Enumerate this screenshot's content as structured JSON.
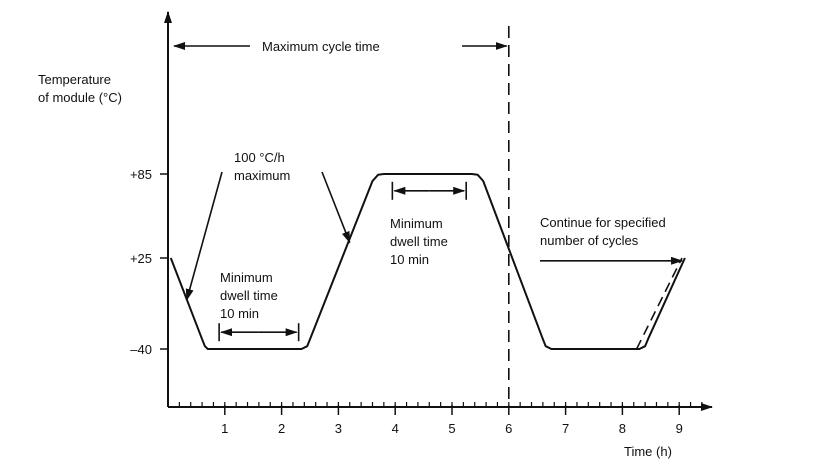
{
  "chart_data": {
    "type": "line",
    "xlabel": "Time (h)",
    "ylabel_lines": [
      "Temperature",
      "of module (°C)"
    ],
    "xlim": [
      0,
      9.6
    ],
    "x_ticks": [
      1,
      2,
      3,
      4,
      5,
      6,
      7,
      8,
      9
    ],
    "y_ticks": [
      {
        "value": -40,
        "label": "–40"
      },
      {
        "value": 25,
        "label": "+25"
      },
      {
        "value": 85,
        "label": "+85"
      }
    ],
    "grid": false,
    "legend": "none",
    "series": [
      {
        "style": "solid",
        "points": [
          [
            0.05,
            25
          ],
          [
            0.6,
            -33
          ],
          [
            0.65,
            -38
          ],
          [
            0.7,
            -40
          ],
          [
            2.35,
            -40
          ],
          [
            2.45,
            -38
          ],
          [
            2.5,
            -33
          ],
          [
            3.6,
            80
          ],
          [
            3.7,
            84.5
          ],
          [
            3.8,
            85
          ],
          [
            5.35,
            85
          ],
          [
            5.45,
            84.5
          ],
          [
            5.55,
            80
          ],
          [
            6.6,
            -33
          ],
          [
            6.65,
            -38
          ],
          [
            6.75,
            -40
          ],
          [
            8.3,
            -40
          ],
          [
            8.4,
            -38
          ],
          [
            8.45,
            -33
          ],
          [
            9.1,
            25
          ]
        ]
      },
      {
        "style": "dashed",
        "points": [
          [
            8.25,
            -40
          ],
          [
            9.05,
            25
          ]
        ]
      }
    ],
    "annotations": {
      "cycle_label": "Maximum cycle time",
      "rate_label_lines": [
        "100 °C/h",
        "maximum"
      ],
      "dwell_low_label_lines": [
        "Minimum",
        "dwell time",
        "10 min"
      ],
      "dwell_high_label_lines": [
        "Minimum",
        "dwell time",
        "10 min"
      ],
      "continue_label_lines": [
        "Continue for specified",
        "number of cycles"
      ]
    }
  }
}
